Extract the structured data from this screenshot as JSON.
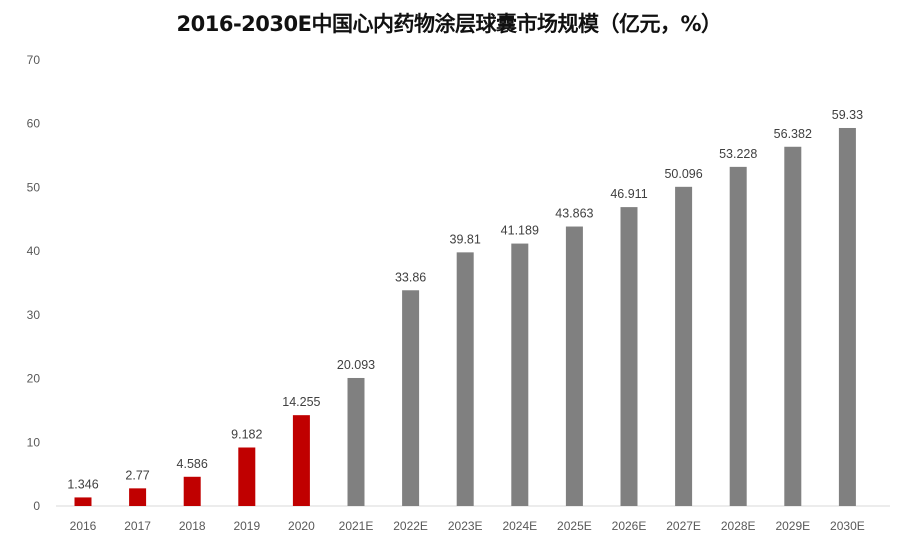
{
  "chart_data": {
    "type": "bar",
    "title": "2016-2030E中国心内药物涂层球囊市场规模（亿元，%）",
    "xlabel": "",
    "ylabel": "",
    "ylim": [
      0,
      70
    ],
    "yticks": [
      0,
      10,
      20,
      30,
      40,
      50,
      60,
      70
    ],
    "grid": false,
    "categories": [
      "2016",
      "2017",
      "2018",
      "2019",
      "2020",
      "2021E",
      "2022E",
      "2023E",
      "2024E",
      "2025E",
      "2026E",
      "2027E",
      "2028E",
      "2029E",
      "2030E"
    ],
    "values": [
      1.346,
      2.77,
      4.586,
      9.182,
      14.255,
      20.093,
      33.86,
      39.81,
      41.189,
      43.863,
      46.911,
      50.096,
      53.228,
      56.382,
      59.33
    ],
    "value_labels": [
      "1.346",
      "2.77",
      "4.586",
      "9.182",
      "14.255",
      "20.093",
      "33.86",
      "39.81",
      "41.189",
      "43.863",
      "46.911",
      "50.096",
      "53.228",
      "56.382",
      "59.33"
    ],
    "colors": {
      "actual": "#C00000",
      "forecast": "#808080"
    },
    "actual_count": 5
  }
}
